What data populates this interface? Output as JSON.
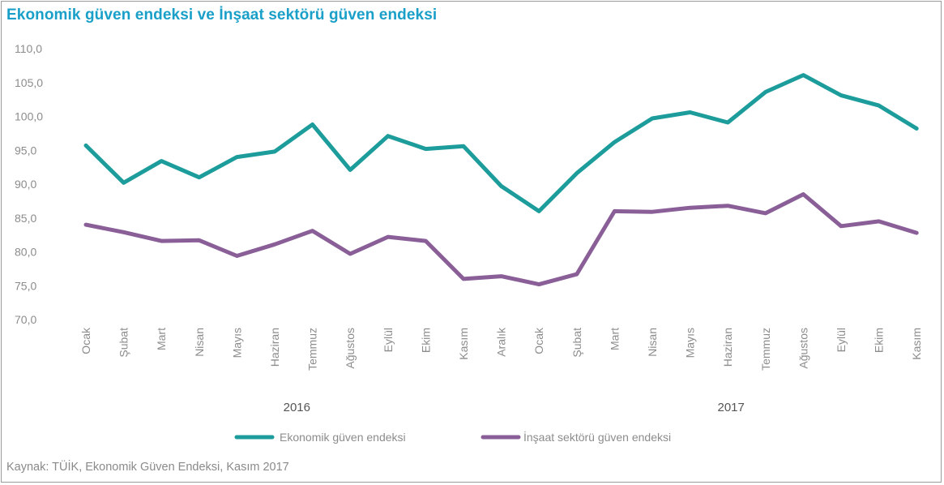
{
  "chart_data": {
    "type": "line",
    "title": "Ekonomik güven endeksi ve İnşaat sektörü güven endeksi",
    "source": "Kaynak: TÜİK, Ekonomik Güven Endeksi, Kasım 2017",
    "categories": [
      "Ocak",
      "Şubat",
      "Mart",
      "Nisan",
      "Mayıs",
      "Haziran",
      "Temmuz",
      "Ağustos",
      "Eylül",
      "Ekim",
      "Kasım",
      "Aralık",
      "Ocak",
      "Şubat",
      "Mart",
      "Nisan",
      "Mayıs",
      "Haziran",
      "Temmuz",
      "Ağustos",
      "Eylül",
      "Ekim",
      "Kasım"
    ],
    "years": [
      {
        "label": "2016",
        "from": 0,
        "to": 11
      },
      {
        "label": "2017",
        "from": 12,
        "to": 22
      }
    ],
    "series": [
      {
        "name": "Ekonomik güven endeksi",
        "color": "#1d9c9c",
        "values": [
          95.7,
          90.2,
          93.4,
          91.0,
          94.0,
          94.8,
          98.8,
          92.1,
          97.1,
          95.2,
          95.6,
          89.7,
          86.0,
          91.6,
          96.2,
          99.7,
          100.6,
          99.1,
          103.6,
          106.1,
          103.1,
          101.6,
          98.2
        ]
      },
      {
        "name": "İnşaat sektörü güven endeksi",
        "color": "#8a5f98",
        "values": [
          84.0,
          82.9,
          81.6,
          81.7,
          79.4,
          81.1,
          83.1,
          79.7,
          82.2,
          81.6,
          76.0,
          76.4,
          75.2,
          76.7,
          86.0,
          85.9,
          86.5,
          86.8,
          85.7,
          88.5,
          83.8,
          84.5,
          82.8
        ]
      }
    ],
    "yticks": [
      "110,0",
      "105,0",
      "100,0",
      "95,0",
      "90,0",
      "85,0",
      "80,0",
      "75,0",
      "70,0"
    ],
    "ylim": [
      70,
      110
    ],
    "grid": false,
    "legend": "bottom-center"
  }
}
